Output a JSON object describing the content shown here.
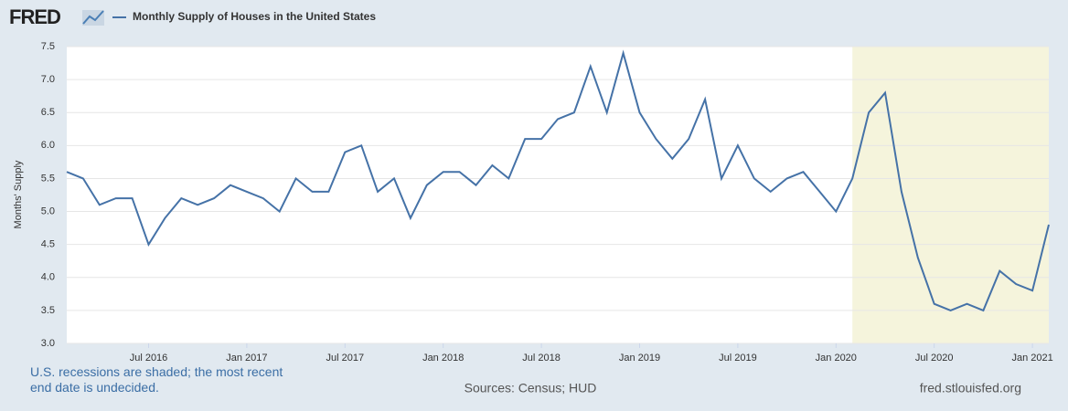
{
  "logo": "FRED",
  "chart_data": {
    "type": "line",
    "y_label": "Months' Supply",
    "note": "U.S. recessions are shaded; the most recent end date is undecided.",
    "source": "Sources: Census; HUD",
    "site": "fred.stlouisfed.org",
    "x": [
      "2016-02",
      "2016-03",
      "2016-04",
      "2016-05",
      "2016-06",
      "2016-07",
      "2016-08",
      "2016-09",
      "2016-10",
      "2016-11",
      "2016-12",
      "2017-01",
      "2017-02",
      "2017-03",
      "2017-04",
      "2017-05",
      "2017-06",
      "2017-07",
      "2017-08",
      "2017-09",
      "2017-10",
      "2017-11",
      "2017-12",
      "2018-01",
      "2018-02",
      "2018-03",
      "2018-04",
      "2018-05",
      "2018-06",
      "2018-07",
      "2018-08",
      "2018-09",
      "2018-10",
      "2018-11",
      "2018-12",
      "2019-01",
      "2019-02",
      "2019-03",
      "2019-04",
      "2019-05",
      "2019-06",
      "2019-07",
      "2019-08",
      "2019-09",
      "2019-10",
      "2019-11",
      "2019-12",
      "2020-01",
      "2020-02",
      "2020-03",
      "2020-04",
      "2020-05",
      "2020-06",
      "2020-07",
      "2020-08",
      "2020-09",
      "2020-10",
      "2020-11",
      "2020-12",
      "2021-01",
      "2021-02"
    ],
    "series": [
      {
        "name": "Monthly Supply of Houses in the United States",
        "color": "#4572a7",
        "values": [
          5.6,
          5.5,
          5.1,
          5.2,
          5.2,
          4.5,
          4.9,
          5.2,
          5.1,
          5.2,
          5.4,
          5.3,
          5.2,
          5.0,
          5.5,
          5.3,
          5.3,
          5.9,
          6.0,
          5.3,
          5.5,
          4.9,
          5.4,
          5.6,
          5.6,
          5.4,
          5.7,
          5.5,
          6.1,
          6.1,
          6.4,
          6.5,
          7.2,
          6.5,
          7.4,
          6.5,
          6.1,
          5.8,
          6.1,
          6.7,
          5.5,
          6.0,
          5.5,
          5.3,
          5.5,
          5.6,
          5.3,
          5.0,
          5.5,
          6.5,
          6.8,
          5.3,
          4.3,
          3.6,
          3.5,
          3.6,
          3.5,
          4.1,
          3.9,
          3.8,
          4.8
        ]
      }
    ],
    "recession_start": "2020-02",
    "recession_color": "#f5f4dc",
    "xticks": [
      {
        "value": "2016-07",
        "label": "Jul 2016"
      },
      {
        "value": "2017-01",
        "label": "Jan 2017"
      },
      {
        "value": "2017-07",
        "label": "Jul 2017"
      },
      {
        "value": "2018-01",
        "label": "Jan 2018"
      },
      {
        "value": "2018-07",
        "label": "Jul 2018"
      },
      {
        "value": "2019-01",
        "label": "Jan 2019"
      },
      {
        "value": "2019-07",
        "label": "Jul 2019"
      },
      {
        "value": "2020-01",
        "label": "Jan 2020"
      },
      {
        "value": "2020-07",
        "label": "Jul 2020"
      },
      {
        "value": "2021-01",
        "label": "Jan 2021"
      }
    ],
    "ylim": [
      3.0,
      7.5
    ],
    "yticks": [
      {
        "value": 3,
        "label": "3.0"
      },
      3.5,
      {
        "value": 4,
        "label": "4.0"
      },
      4.5,
      {
        "value": 5,
        "label": "5.0"
      },
      5.5,
      {
        "value": 6,
        "label": "6.0"
      },
      6.5,
      {
        "value": 7,
        "label": "7.0"
      },
      7.5
    ],
    "grid": true
  }
}
